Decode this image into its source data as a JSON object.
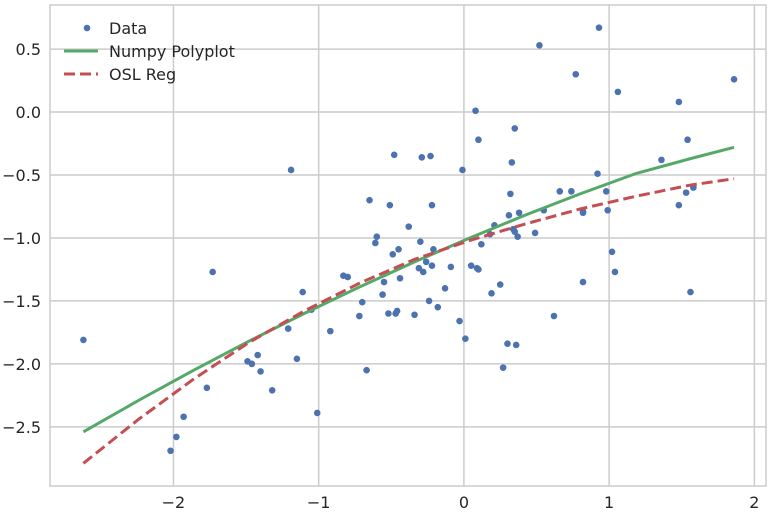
{
  "chart_data": {
    "type": "scatter",
    "title": "",
    "xlabel": "",
    "ylabel": "",
    "xlim": [
      -2.85,
      2.08
    ],
    "ylim": [
      -2.97,
      0.85
    ],
    "grid": true,
    "legend_position": "top-left",
    "x_ticks": [
      {
        "value": -2,
        "label": "−2"
      },
      {
        "value": -1,
        "label": "−1"
      },
      {
        "value": 0,
        "label": "0"
      },
      {
        "value": 1,
        "label": "1"
      },
      {
        "value": 2,
        "label": "2"
      }
    ],
    "y_ticks": [
      {
        "value": 0.5,
        "label": "0.5"
      },
      {
        "value": 0.0,
        "label": "0.0"
      },
      {
        "value": -0.5,
        "label": "−0.5"
      },
      {
        "value": -1.0,
        "label": "−1.0"
      },
      {
        "value": -1.5,
        "label": "−1.5"
      },
      {
        "value": -2.0,
        "label": "−2.0"
      },
      {
        "value": -2.5,
        "label": "−2.5"
      }
    ],
    "series": [
      {
        "name": "Data",
        "kind": "scatter",
        "color": "#4c72b0",
        "points": [
          [
            -2.62,
            -1.81
          ],
          [
            -2.02,
            -2.69
          ],
          [
            -1.98,
            -2.58
          ],
          [
            -1.93,
            -2.42
          ],
          [
            -1.77,
            -2.19
          ],
          [
            -1.73,
            -1.27
          ],
          [
            -1.49,
            -1.98
          ],
          [
            -1.46,
            -2.0
          ],
          [
            -1.42,
            -1.93
          ],
          [
            -1.4,
            -2.06
          ],
          [
            -1.32,
            -2.21
          ],
          [
            -1.21,
            -1.72
          ],
          [
            -1.19,
            -0.46
          ],
          [
            -1.15,
            -1.96
          ],
          [
            -1.11,
            -1.43
          ],
          [
            -1.05,
            -1.57
          ],
          [
            -1.01,
            -2.39
          ],
          [
            -0.92,
            -1.74
          ],
          [
            -0.83,
            -1.3
          ],
          [
            -0.8,
            -1.31
          ],
          [
            -0.72,
            -1.62
          ],
          [
            -0.7,
            -1.51
          ],
          [
            -0.67,
            -2.05
          ],
          [
            -0.65,
            -0.7
          ],
          [
            -0.61,
            -1.04
          ],
          [
            -0.6,
            -0.99
          ],
          [
            -0.56,
            -1.45
          ],
          [
            -0.55,
            -1.35
          ],
          [
            -0.52,
            -1.6
          ],
          [
            -0.51,
            -0.74
          ],
          [
            -0.49,
            -1.13
          ],
          [
            -0.48,
            -0.34
          ],
          [
            -0.47,
            -1.6
          ],
          [
            -0.46,
            -1.58
          ],
          [
            -0.45,
            -1.09
          ],
          [
            -0.44,
            -1.32
          ],
          [
            -0.38,
            -0.91
          ],
          [
            -0.34,
            -1.61
          ],
          [
            -0.31,
            -1.24
          ],
          [
            -0.3,
            -1.03
          ],
          [
            -0.29,
            -0.36
          ],
          [
            -0.28,
            -1.27
          ],
          [
            -0.26,
            -1.19
          ],
          [
            -0.24,
            -1.5
          ],
          [
            -0.23,
            -0.35
          ],
          [
            -0.22,
            -0.74
          ],
          [
            -0.22,
            -1.22
          ],
          [
            -0.21,
            -1.09
          ],
          [
            -0.18,
            -1.55
          ],
          [
            -0.13,
            -1.4
          ],
          [
            -0.09,
            -1.23
          ],
          [
            -0.03,
            -1.66
          ],
          [
            -0.01,
            -0.46
          ],
          [
            0.01,
            -1.8
          ],
          [
            0.05,
            -1.22
          ],
          [
            0.08,
            0.01
          ],
          [
            0.09,
            -1.24
          ],
          [
            0.1,
            -0.22
          ],
          [
            0.1,
            -1.25
          ],
          [
            0.12,
            -1.05
          ],
          [
            0.18,
            -0.97
          ],
          [
            0.19,
            -1.44
          ],
          [
            0.21,
            -0.9
          ],
          [
            0.25,
            -1.37
          ],
          [
            0.27,
            -2.03
          ],
          [
            0.3,
            -1.84
          ],
          [
            0.31,
            -0.82
          ],
          [
            0.32,
            -0.65
          ],
          [
            0.33,
            -0.4
          ],
          [
            0.34,
            -0.93
          ],
          [
            0.35,
            -0.95
          ],
          [
            0.35,
            -0.13
          ],
          [
            0.36,
            -1.85
          ],
          [
            0.37,
            -0.99
          ],
          [
            0.38,
            -0.8
          ],
          [
            0.49,
            -0.96
          ],
          [
            0.52,
            0.53
          ],
          [
            0.55,
            -0.78
          ],
          [
            0.62,
            -1.62
          ],
          [
            0.66,
            -0.63
          ],
          [
            0.74,
            -0.63
          ],
          [
            0.77,
            0.3
          ],
          [
            0.82,
            -0.79
          ],
          [
            0.82,
            -0.8
          ],
          [
            0.82,
            -1.35
          ],
          [
            0.92,
            -0.49
          ],
          [
            0.93,
            0.67
          ],
          [
            0.98,
            -0.63
          ],
          [
            0.99,
            -0.78
          ],
          [
            1.02,
            -1.11
          ],
          [
            1.04,
            -1.27
          ],
          [
            1.06,
            0.16
          ],
          [
            1.36,
            -0.38
          ],
          [
            1.48,
            0.08
          ],
          [
            1.48,
            -0.74
          ],
          [
            1.53,
            -0.64
          ],
          [
            1.54,
            -0.22
          ],
          [
            1.56,
            -1.43
          ],
          [
            1.58,
            -0.6
          ],
          [
            1.86,
            0.26
          ]
        ]
      },
      {
        "name": "Numpy Polyplot",
        "kind": "line",
        "style": "solid",
        "color": "#55a868",
        "x": [
          -2.62,
          -2.24,
          -1.86,
          -1.48,
          -1.1,
          -0.72,
          -0.34,
          0.04,
          0.42,
          0.8,
          1.18,
          1.56,
          1.86
        ],
        "y": [
          -2.54,
          -2.29,
          -2.05,
          -1.82,
          -1.6,
          -1.39,
          -1.19,
          -1.0,
          -0.82,
          -0.65,
          -0.49,
          -0.37,
          -0.28
        ]
      },
      {
        "name": "OSL Reg",
        "kind": "line",
        "style": "dashed",
        "color": "#c44e52",
        "x": [
          -2.62,
          -2.24,
          -1.86,
          -1.48,
          -1.1,
          -0.72,
          -0.34,
          0.04,
          0.42,
          0.8,
          1.18,
          1.56,
          1.86
        ],
        "y": [
          -2.79,
          -2.44,
          -2.12,
          -1.83,
          -1.58,
          -1.36,
          -1.17,
          -1.02,
          -0.89,
          -0.77,
          -0.67,
          -0.58,
          -0.53
        ]
      }
    ]
  }
}
